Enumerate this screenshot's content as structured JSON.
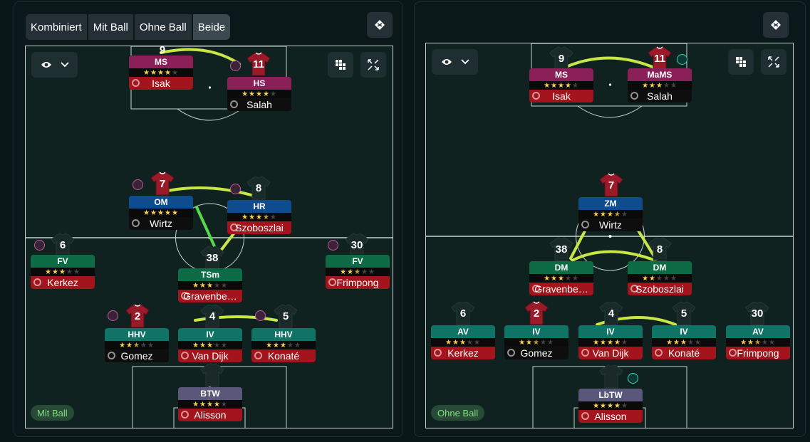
{
  "left_panel": {
    "tabs": [
      "Kombiniert",
      "Mit Ball",
      "Ohne Ball",
      "Beide"
    ],
    "mode_label": "Mit Ball",
    "players": [
      {
        "num": "9",
        "role": "MS",
        "role_color": "pink",
        "stars": 4,
        "name": "Isak",
        "name_style": "red",
        "shirt": "none"
      },
      {
        "num": "11",
        "role": "HS",
        "role_color": "pink",
        "stars": 4,
        "name": "Salah",
        "name_style": "dark",
        "shirt": "red"
      },
      {
        "num": "7",
        "role": "OM",
        "role_color": "blue",
        "stars": 5,
        "name": "Wirtz",
        "name_style": "dark",
        "shirt": "red"
      },
      {
        "num": "8",
        "role": "HR",
        "role_color": "blue",
        "stars": 3.5,
        "name": "Szoboszlai",
        "name_style": "red",
        "shirt": "ghost"
      },
      {
        "num": "6",
        "role": "FV",
        "role_color": "green",
        "stars": 3,
        "name": "Kerkez",
        "name_style": "red",
        "shirt": "ghost"
      },
      {
        "num": "38",
        "role": "TSm",
        "role_color": "green",
        "stars": 3,
        "name": "Gravenbe…",
        "name_style": "red",
        "shirt": "ghost"
      },
      {
        "num": "30",
        "role": "FV",
        "role_color": "green",
        "stars": 2.5,
        "name": "Frimpong",
        "name_style": "red",
        "shirt": "ghost"
      },
      {
        "num": "2",
        "role": "HHV",
        "role_color": "teal",
        "stars": 2.5,
        "name": "Gomez",
        "name_style": "dark",
        "shirt": "red"
      },
      {
        "num": "4",
        "role": "IV",
        "role_color": "teal",
        "stars": 3,
        "name": "Van Dijk",
        "name_style": "red",
        "shirt": "ghost"
      },
      {
        "num": "5",
        "role": "HHV",
        "role_color": "teal",
        "stars": 3,
        "name": "Konaté",
        "name_style": "red",
        "shirt": "ghost"
      },
      {
        "num": "",
        "role": "BTW",
        "role_color": "gray",
        "stars": 4,
        "name": "Alisson",
        "name_style": "red",
        "shirt": "ghost"
      }
    ]
  },
  "right_panel": {
    "mode_label": "Ohne Ball",
    "players": [
      {
        "num": "9",
        "role": "MS",
        "role_color": "pink",
        "stars": 4,
        "name": "Isak",
        "name_style": "red",
        "shirt": "ghost"
      },
      {
        "num": "11",
        "role": "MaMS",
        "role_color": "pink",
        "stars": 3,
        "name": "Salah",
        "name_style": "dark",
        "shirt": "red"
      },
      {
        "num": "7",
        "role": "ZM",
        "role_color": "blue",
        "stars": 3.5,
        "name": "Wirtz",
        "name_style": "dark",
        "shirt": "red"
      },
      {
        "num": "38",
        "role": "DM",
        "role_color": "green",
        "stars": 3,
        "name": "Gravenbe…",
        "name_style": "red",
        "shirt": "ghost"
      },
      {
        "num": "8",
        "role": "DM",
        "role_color": "green",
        "stars": 2,
        "name": "Szoboszlai",
        "name_style": "red",
        "shirt": "ghost"
      },
      {
        "num": "6",
        "role": "AV",
        "role_color": "teal",
        "stars": 3,
        "name": "Kerkez",
        "name_style": "red",
        "shirt": "ghost"
      },
      {
        "num": "2",
        "role": "IV",
        "role_color": "teal",
        "stars": 2.5,
        "name": "Gomez",
        "name_style": "dark",
        "shirt": "red"
      },
      {
        "num": "4",
        "role": "IV",
        "role_color": "teal",
        "stars": 4,
        "name": "Van Dijk",
        "name_style": "red",
        "shirt": "ghost"
      },
      {
        "num": "5",
        "role": "IV",
        "role_color": "teal",
        "stars": 3,
        "name": "Konaté",
        "name_style": "red",
        "shirt": "ghost"
      },
      {
        "num": "30",
        "role": "AV",
        "role_color": "teal",
        "stars": 2.5,
        "name": "Frimpong",
        "name_style": "red",
        "shirt": "ghost"
      },
      {
        "num": "",
        "role": "LbTW",
        "role_color": "gray",
        "stars": 4,
        "name": "Alisson",
        "name_style": "red",
        "shirt": "ghost"
      }
    ]
  },
  "icons": {
    "settings": "tactics-icon",
    "visibility": "eye-icon",
    "dropdown": "chevron-down-icon",
    "grid": "grid-icon",
    "expand": "expand-icon"
  }
}
